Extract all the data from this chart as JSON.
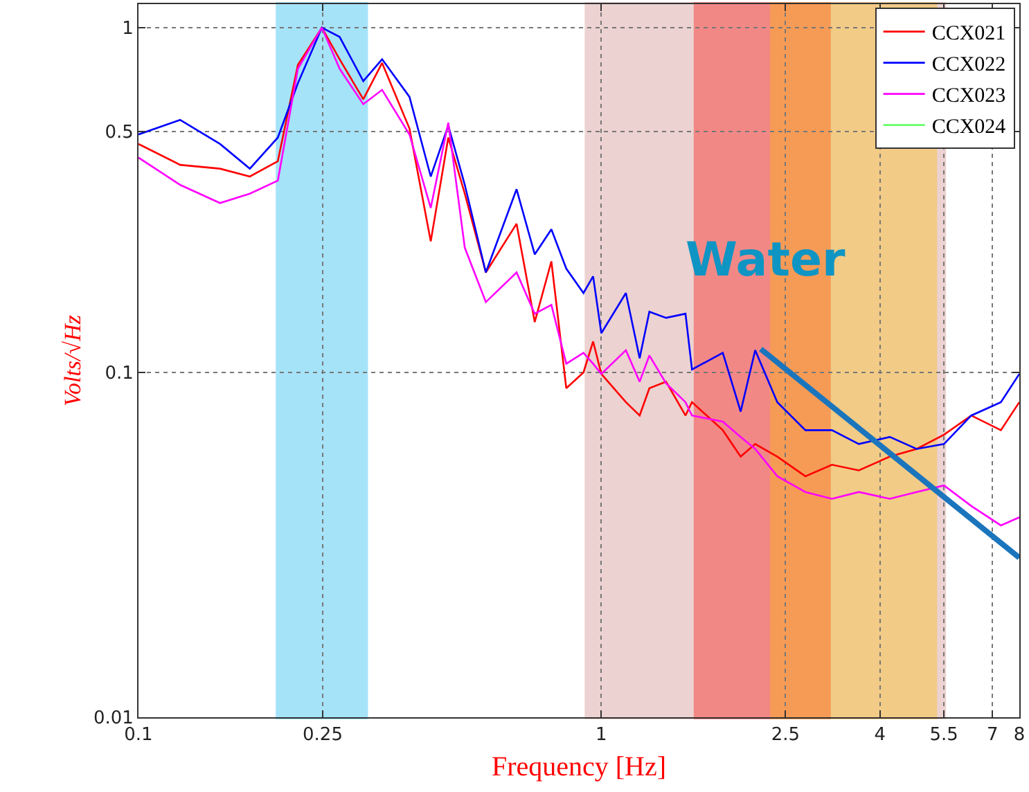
{
  "chart_data": {
    "type": "line",
    "xlabel": "Frequency [Hz]",
    "ylabel": "Volts/√Hz",
    "x": [
      0.1,
      0.123,
      0.15,
      0.174,
      0.2,
      0.221,
      0.249,
      0.272,
      0.306,
      0.336,
      0.385,
      0.428,
      0.467,
      0.507,
      0.563,
      0.656,
      0.718,
      0.78,
      0.84,
      0.915,
      0.96,
      1.0,
      1.13,
      1.21,
      1.27,
      1.38,
      1.52,
      1.57,
      1.83,
      2.0,
      2.15,
      2.4,
      2.76,
      3.15,
      3.6,
      4.2,
      4.8,
      5.5,
      6.3,
      7.3,
      8.0
    ],
    "series": [
      {
        "name": "CCX021",
        "color": "#ff0000",
        "values": [
          0.46,
          0.4,
          0.39,
          0.37,
          0.41,
          0.78,
          1.0,
          0.81,
          0.62,
          0.79,
          0.51,
          0.24,
          0.48,
          0.33,
          0.195,
          0.27,
          0.14,
          0.21,
          0.09,
          0.1,
          0.123,
          0.099,
          0.082,
          0.075,
          0.09,
          0.094,
          0.075,
          0.082,
          0.068,
          0.057,
          0.062,
          0.057,
          0.05,
          0.054,
          0.052,
          0.057,
          0.06,
          0.066,
          0.075,
          0.068,
          0.082
        ]
      },
      {
        "name": "CCX022",
        "color": "#0000ff",
        "values": [
          0.49,
          0.54,
          0.46,
          0.39,
          0.48,
          0.69,
          1.0,
          0.94,
          0.7,
          0.81,
          0.63,
          0.37,
          0.52,
          0.35,
          0.195,
          0.34,
          0.22,
          0.26,
          0.2,
          0.17,
          0.19,
          0.13,
          0.17,
          0.11,
          0.15,
          0.144,
          0.148,
          0.102,
          0.114,
          0.077,
          0.116,
          0.082,
          0.068,
          0.068,
          0.062,
          0.065,
          0.06,
          0.062,
          0.075,
          0.082,
          0.099
        ]
      },
      {
        "name": "CCX023",
        "color": "#ff00ff",
        "values": [
          0.42,
          0.35,
          0.31,
          0.33,
          0.36,
          0.76,
          1.0,
          0.76,
          0.6,
          0.66,
          0.49,
          0.3,
          0.53,
          0.23,
          0.16,
          0.195,
          0.148,
          0.157,
          0.106,
          0.114,
          0.106,
          0.099,
          0.116,
          0.094,
          0.112,
          0.093,
          0.082,
          0.075,
          0.072,
          0.065,
          0.06,
          0.05,
          0.045,
          0.043,
          0.045,
          0.043,
          0.045,
          0.047,
          0.041,
          0.036,
          0.038
        ]
      },
      {
        "name": "CCX024",
        "color": "#66ff66",
        "values": [
          null,
          null,
          null,
          null,
          null,
          null,
          null,
          null,
          null,
          null,
          null,
          null,
          null,
          null,
          null,
          null,
          null,
          null,
          null,
          null,
          null,
          null,
          null,
          null,
          null,
          null,
          null,
          null,
          null,
          null,
          null,
          null,
          null,
          null,
          null,
          null,
          null,
          null,
          null,
          null,
          null
        ]
      },
      {
        "type": "line",
        "color": "#1b75bc",
        "x": [
          2.21,
          8
        ],
        "values": [
          0.117,
          0.029
        ]
      }
    ],
    "bands": [
      {
        "axis": "x",
        "from": 0.2,
        "to": 0.31,
        "color": "#00b0f0"
      },
      {
        "axis": "x",
        "from": 0.93,
        "to": 5.5,
        "color": "#c9807a",
        "label": "Water"
      },
      {
        "axis": "x",
        "from": 1.6,
        "to": 3.1,
        "color": "#ff0000"
      },
      {
        "axis": "x",
        "from": 2.34,
        "to": 5.26,
        "color": "#ffc000"
      }
    ],
    "log": "xy",
    "xlim": [
      0.1,
      8
    ],
    "ylim": [
      0.01,
      1.17
    ],
    "xticks": [
      0.1,
      0.25,
      1,
      2.5,
      4,
      5.5,
      7,
      8
    ],
    "yticks": [
      0.01,
      0.1,
      0.5,
      1
    ],
    "grid": true,
    "legend": "top right",
    "line_style": "solid",
    "marker": "none"
  }
}
